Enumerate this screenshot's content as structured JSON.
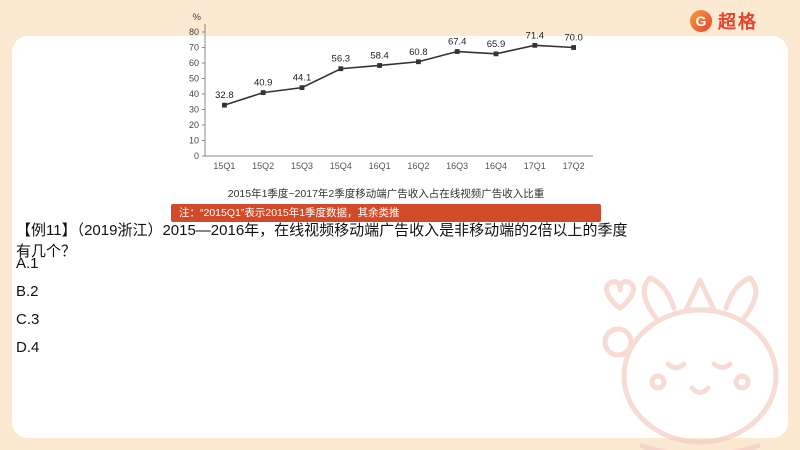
{
  "brand": {
    "name": "超格",
    "logo_letter": "G"
  },
  "chart_data": {
    "type": "line",
    "categories": [
      "15Q1",
      "15Q2",
      "15Q3",
      "15Q4",
      "16Q1",
      "16Q2",
      "16Q3",
      "16Q4",
      "17Q1",
      "17Q2"
    ],
    "values": [
      32.8,
      40.9,
      44.1,
      56.3,
      58.4,
      60.8,
      67.4,
      65.9,
      71.4,
      70.0
    ],
    "title": "2015年1季度~2017年2季度移动端广告收入占在线视频广告收入比重",
    "ylabel": "%",
    "ylim": [
      0,
      80
    ],
    "ytick_step": 10,
    "note": "注：“2015Q1”表示2015年1季度数据，其余类推",
    "legend": "none",
    "grid": "off",
    "line_color": "#333333",
    "note_bg": "#D14B2A"
  },
  "question": {
    "stem": "【例11】（2019浙江）2015—2016年，在线视频移动端广告收入是非移动端的2倍以上的季度有几个？",
    "options": [
      "A.1",
      "B.2",
      "C.3",
      "D.4"
    ]
  },
  "colors": {
    "accent": "#E8432D",
    "page_bg": "#FBE9D1",
    "note_bar": "#D14B2A"
  }
}
